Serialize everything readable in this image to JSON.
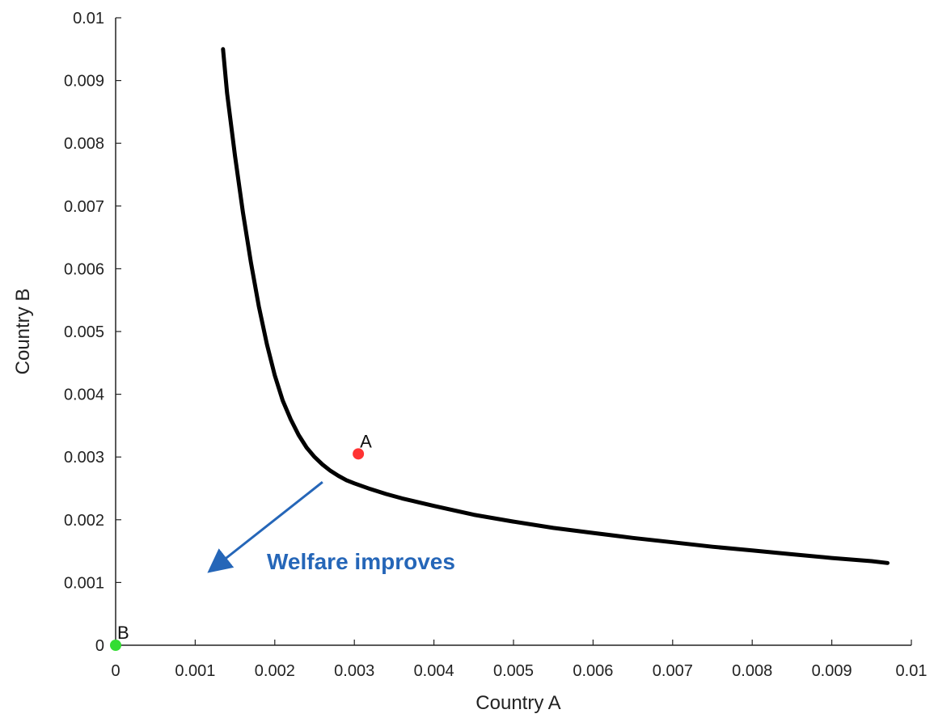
{
  "chart_data": {
    "type": "line",
    "xlabel": "Country A",
    "ylabel": "Country B",
    "xlim": [
      0,
      0.01
    ],
    "ylim": [
      0,
      0.01
    ],
    "x_ticks": [
      "0",
      "0.001",
      "0.002",
      "0.003",
      "0.004",
      "0.005",
      "0.006",
      "0.007",
      "0.008",
      "0.009",
      "0.01"
    ],
    "y_ticks": [
      "0",
      "0.001",
      "0.002",
      "0.003",
      "0.004",
      "0.005",
      "0.006",
      "0.007",
      "0.008",
      "0.009",
      "0.01"
    ],
    "grid": false,
    "series": [
      {
        "color": "#000000",
        "x": [
          0.00135,
          0.0014,
          0.0015,
          0.0016,
          0.0017,
          0.0018,
          0.0019,
          0.002,
          0.0021,
          0.0022,
          0.0023,
          0.0024,
          0.0025,
          0.0026,
          0.0027,
          0.0028,
          0.0029,
          0.003,
          0.0032,
          0.0034,
          0.0036,
          0.0038,
          0.004,
          0.0045,
          0.005,
          0.0055,
          0.006,
          0.0065,
          0.007,
          0.0075,
          0.008,
          0.0085,
          0.009,
          0.0095,
          0.0097
        ],
        "y": [
          0.0095,
          0.0088,
          0.0078,
          0.0069,
          0.0061,
          0.0054,
          0.0048,
          0.0043,
          0.0039,
          0.0036,
          0.00335,
          0.00315,
          0.003,
          0.00288,
          0.00278,
          0.0027,
          0.00263,
          0.00258,
          0.00249,
          0.00241,
          0.00234,
          0.00228,
          0.00222,
          0.00208,
          0.00197,
          0.00187,
          0.00179,
          0.00171,
          0.00164,
          0.00157,
          0.00151,
          0.00145,
          0.00139,
          0.00134,
          0.00131
        ]
      }
    ],
    "points": [
      {
        "label": "A",
        "x": 0.00305,
        "y": 0.00305,
        "color": "#ff3333"
      },
      {
        "label": "B",
        "x": 0.0,
        "y": 0.0,
        "color": "#33dd33"
      }
    ],
    "annotation": {
      "text": "Welfare improves",
      "color": "#2566b8",
      "arrow_from": [
        0.0026,
        0.0026
      ],
      "arrow_to": [
        0.0012,
        0.0012
      ]
    }
  }
}
